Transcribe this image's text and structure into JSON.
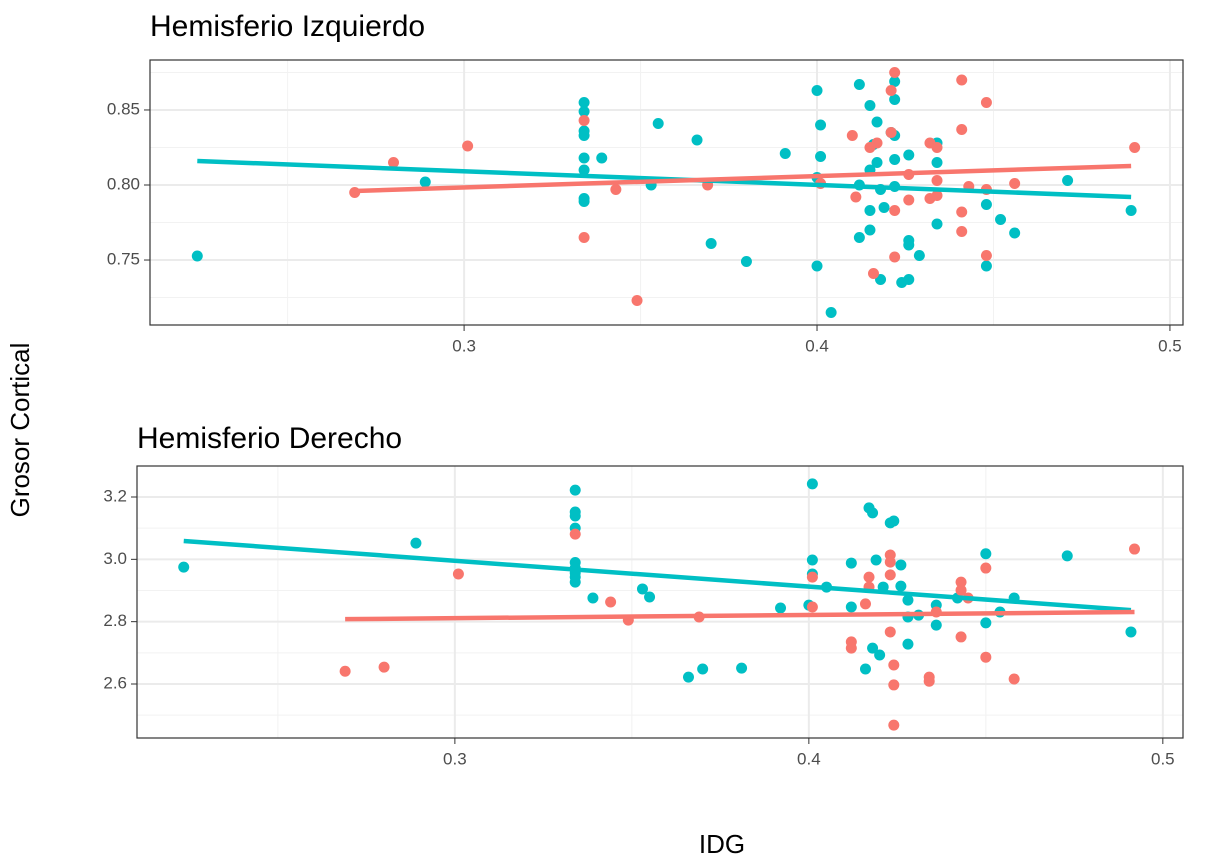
{
  "chart_data": [
    {
      "type": "scatter",
      "title": "Hemisferio Izquierdo",
      "ylabel": "Grosor Cortical",
      "xlim": [
        0.211,
        0.5037
      ],
      "ylim": [
        0.7067,
        0.8833
      ],
      "xticks": [
        0.3,
        0.4,
        0.5
      ],
      "yticks": [
        0.75,
        {
          "value": 0.8,
          "label": "0.80"
        },
        0.85
      ],
      "grid": true,
      "series": [
        {
          "type": "scatter",
          "color": "#00BFC4",
          "x": [
            0.2244,
            0.289,
            0.334,
            0.334,
            0.334,
            0.334,
            0.334,
            0.334,
            0.334,
            0.334,
            0.339,
            0.353,
            0.355,
            0.366,
            0.37,
            0.38,
            0.391,
            0.4,
            0.401,
            0.401,
            0.4,
            0.4,
            0.404,
            0.412,
            0.412,
            0.412,
            0.415,
            0.415,
            0.415,
            0.415,
            0.416,
            0.417,
            0.417,
            0.418,
            0.418,
            0.419,
            0.421,
            0.422,
            0.422,
            0.422,
            0.422,
            0.424,
            0.426,
            0.426,
            0.426,
            0.426,
            0.429,
            0.434,
            0.434,
            0.434,
            0.448,
            0.448,
            0.452,
            0.456,
            0.471,
            0.489,
            0.422
          ],
          "values": [
            0.7527,
            0.802,
            0.855,
            0.849,
            0.836,
            0.833,
            0.818,
            0.81,
            0.791,
            0.789,
            0.818,
            0.8,
            0.841,
            0.83,
            0.761,
            0.749,
            0.821,
            0.863,
            0.84,
            0.819,
            0.746,
            0.805,
            0.715,
            0.867,
            0.765,
            0.8,
            0.853,
            0.81,
            0.783,
            0.77,
            0.827,
            0.842,
            0.815,
            0.797,
            0.737,
            0.785,
            0.835,
            0.817,
            0.799,
            0.869,
            0.857,
            0.735,
            0.82,
            0.763,
            0.76,
            0.737,
            0.753,
            0.828,
            0.815,
            0.774,
            0.787,
            0.746,
            0.777,
            0.768,
            0.803,
            0.783,
            0.833
          ]
        },
        {
          "type": "scatter",
          "color": "#F8766D",
          "x": [
            0.269,
            0.28,
            0.301,
            0.334,
            0.334,
            0.343,
            0.349,
            0.369,
            0.401,
            0.41,
            0.411,
            0.415,
            0.417,
            0.421,
            0.422,
            0.421,
            0.422,
            0.422,
            0.416,
            0.426,
            0.426,
            0.432,
            0.432,
            0.434,
            0.434,
            0.434,
            0.441,
            0.441,
            0.441,
            0.441,
            0.443,
            0.448,
            0.448,
            0.448,
            0.456,
            0.49
          ],
          "values": [
            0.795,
            0.815,
            0.826,
            0.843,
            0.765,
            0.797,
            0.723,
            0.8,
            0.801,
            0.833,
            0.792,
            0.825,
            0.828,
            0.863,
            0.875,
            0.835,
            0.783,
            0.752,
            0.741,
            0.79,
            0.807,
            0.791,
            0.828,
            0.825,
            0.803,
            0.793,
            0.87,
            0.837,
            0.782,
            0.769,
            0.799,
            0.855,
            0.797,
            0.753,
            0.801,
            0.825
          ]
        },
        {
          "type": "line",
          "color": "#00BFC4",
          "x": [
            0.2244,
            0.489
          ],
          "values": [
            0.816,
            0.792
          ]
        },
        {
          "type": "line",
          "color": "#F8766D",
          "x": [
            0.269,
            0.489
          ],
          "values": [
            0.796,
            0.8127
          ]
        }
      ]
    },
    {
      "type": "scatter",
      "title": "Hemisferio Derecho",
      "xlabel": "IDG",
      "xlim": [
        0.2102,
        0.5057
      ],
      "ylim": [
        2.4267,
        3.2995
      ],
      "xticks": [
        0.3,
        0.4,
        0.5
      ],
      "yticks": [
        2.6,
        2.8,
        {
          "value": 3,
          "label": "3.0"
        },
        3.2
      ],
      "grid": true,
      "series": [
        {
          "type": "scatter",
          "color": "#00BFC4",
          "x": [
            0.2234,
            0.289,
            0.334,
            0.334,
            0.334,
            0.334,
            0.334,
            0.334,
            0.334,
            0.334,
            0.334,
            0.339,
            0.353,
            0.355,
            0.366,
            0.37,
            0.381,
            0.392,
            0.4,
            0.401,
            0.401,
            0.401,
            0.405,
            0.412,
            0.412,
            0.417,
            0.418,
            0.419,
            0.418,
            0.42,
            0.416,
            0.423,
            0.424,
            0.426,
            0.428,
            0.428,
            0.428,
            0.421,
            0.436,
            0.436,
            0.442,
            0.45,
            0.45,
            0.454,
            0.458,
            0.473,
            0.491,
            0.426,
            0.431
          ],
          "values": [
            2.975,
            3.052,
            3.222,
            3.152,
            3.139,
            3.1,
            2.99,
            2.972,
            2.956,
            2.943,
            2.927,
            2.876,
            2.905,
            2.879,
            2.622,
            2.648,
            2.651,
            2.844,
            2.853,
            2.953,
            2.998,
            3.242,
            2.911,
            2.988,
            2.847,
            3.165,
            3.149,
            2.998,
            2.715,
            2.693,
            2.648,
            3.117,
            3.123,
            2.982,
            2.869,
            2.815,
            2.728,
            2.911,
            2.853,
            2.789,
            2.876,
            3.018,
            2.796,
            2.831,
            2.876,
            3.011,
            2.767,
            2.914,
            2.821
          ]
        },
        {
          "type": "scatter",
          "color": "#F8766D",
          "x": [
            0.269,
            0.28,
            0.301,
            0.334,
            0.344,
            0.349,
            0.369,
            0.401,
            0.401,
            0.412,
            0.412,
            0.416,
            0.417,
            0.417,
            0.423,
            0.423,
            0.423,
            0.423,
            0.424,
            0.424,
            0.424,
            0.434,
            0.434,
            0.436,
            0.443,
            0.443,
            0.443,
            0.445,
            0.45,
            0.45,
            0.458,
            0.492
          ],
          "values": [
            2.641,
            2.654,
            2.953,
            3.081,
            2.863,
            2.805,
            2.815,
            2.943,
            2.847,
            2.735,
            2.715,
            2.857,
            2.943,
            2.911,
            3.014,
            2.991,
            2.95,
            2.767,
            2.661,
            2.597,
            2.468,
            2.622,
            2.609,
            2.831,
            2.927,
            2.901,
            2.751,
            2.876,
            2.972,
            2.686,
            2.616,
            3.033
          ]
        },
        {
          "type": "line",
          "color": "#00BFC4",
          "x": [
            0.2234,
            0.491
          ],
          "values": [
            3.059,
            2.837
          ]
        },
        {
          "type": "line",
          "color": "#F8766D",
          "x": [
            0.269,
            0.492
          ],
          "values": [
            2.808,
            2.831
          ]
        }
      ]
    }
  ]
}
